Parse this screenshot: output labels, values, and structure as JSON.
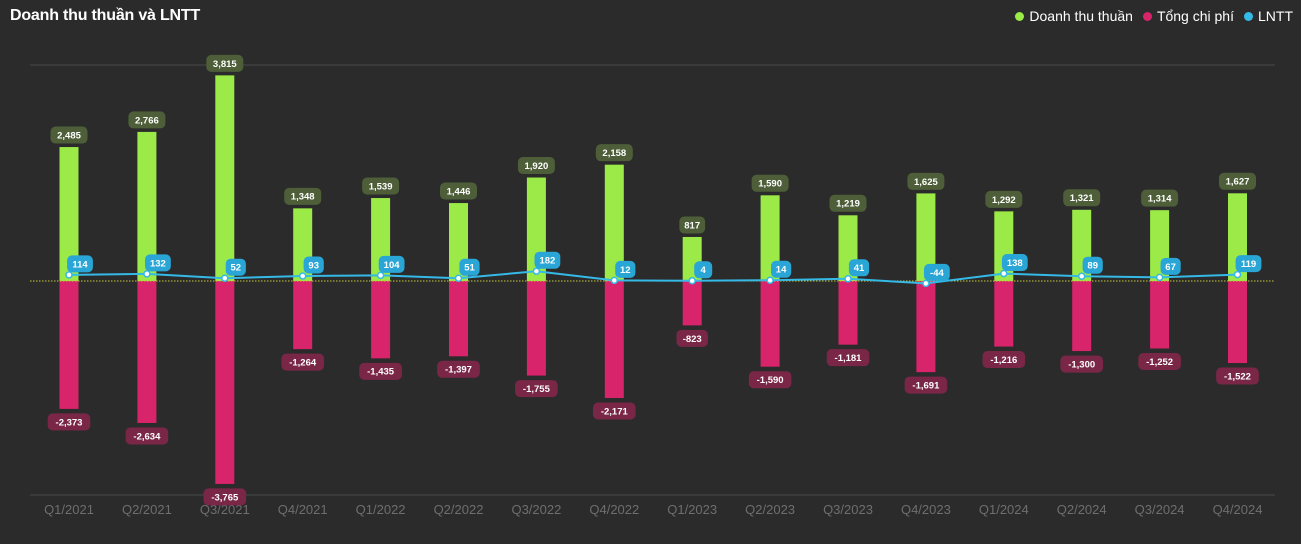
{
  "chart_data": {
    "type": "bar",
    "title": "Doanh thu thuần và LNTT",
    "legend_position": "top-right",
    "categories": [
      "Q1/2021",
      "Q2/2021",
      "Q3/2021",
      "Q4/2021",
      "Q1/2022",
      "Q2/2022",
      "Q3/2022",
      "Q4/2022",
      "Q1/2023",
      "Q2/2023",
      "Q3/2023",
      "Q4/2023",
      "Q1/2024",
      "Q2/2024",
      "Q3/2024",
      "Q4/2024"
    ],
    "series": [
      {
        "name": "Doanh thu thuần",
        "type": "bar",
        "color": "#9bea47",
        "label_bg": "#4d5e38",
        "values": [
          2485,
          2766,
          3815,
          1348,
          1539,
          1446,
          1920,
          2158,
          817,
          1590,
          1219,
          1625,
          1292,
          1321,
          1314,
          1627
        ],
        "labels": [
          "2,485",
          "2,766",
          "3,815",
          "1,348",
          "1,539",
          "1,446",
          "1,920",
          "2,158",
          "817",
          "1,590",
          "1,219",
          "1,625",
          "1,292",
          "1,321",
          "1,314",
          "1,627"
        ]
      },
      {
        "name": "Tổng chi phí",
        "type": "bar",
        "color": "#d8246a",
        "label_bg": "#7a2747",
        "values": [
          -2373,
          -2634,
          -3765,
          -1264,
          -1435,
          -1397,
          -1755,
          -2171,
          -823,
          -1590,
          -1181,
          -1691,
          -1216,
          -1300,
          -1252,
          -1522
        ],
        "labels": [
          "-2,373",
          "-2,634",
          "-3,765",
          "-1,264",
          "-1,435",
          "-1,397",
          "-1,755",
          "-2,171",
          "-823",
          "-1,590",
          "-1,181",
          "-1,691",
          "-1,216",
          "-1,300",
          "-1,252",
          "-1,522"
        ]
      },
      {
        "name": "LNTT",
        "type": "line",
        "color": "#35b9e6",
        "label_bg": "#2aa6d6",
        "values": [
          114,
          132,
          52,
          93,
          104,
          51,
          182,
          12,
          4,
          14,
          41,
          -44,
          138,
          89,
          67,
          119
        ],
        "labels": [
          "114",
          "132",
          "52",
          "93",
          "104",
          "51",
          "182",
          "12",
          "4",
          "14",
          "41",
          "-44",
          "138",
          "89",
          "67",
          "119"
        ]
      }
    ],
    "ylim": [
      -4000,
      4000
    ],
    "grid": "top and bottom lines only",
    "zero_line_color": "#c8c83a"
  }
}
